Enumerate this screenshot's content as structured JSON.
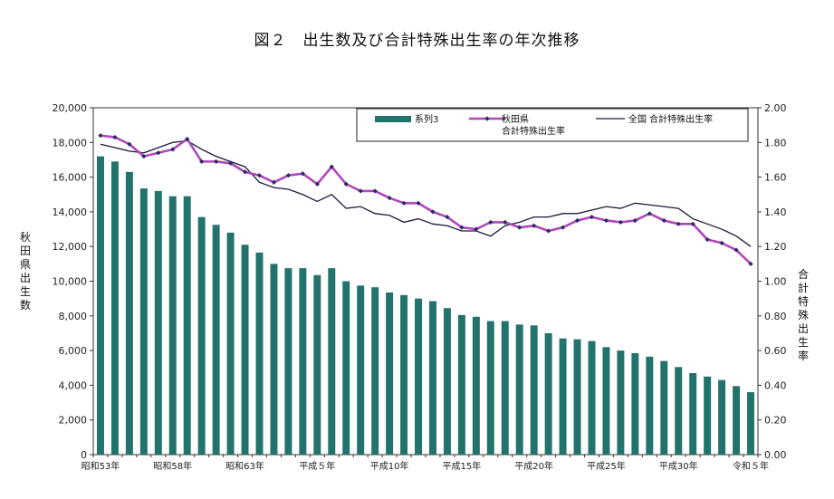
{
  "chart_data": {
    "type": "bar",
    "title": "図２　出生数及び合計特殊出生率の年次推移",
    "ylabel_left": "秋田県出生数",
    "ylabel_right": "合計特殊出生率",
    "ylim_left": [
      0,
      20000
    ],
    "ylim_right": [
      0,
      2.0
    ],
    "yticks_left": [
      "0",
      "2,000",
      "4,000",
      "6,000",
      "8,000",
      "10,000",
      "12,000",
      "14,000",
      "16,000",
      "18,000",
      "20,000"
    ],
    "yticks_right": [
      "0.00",
      "0.20",
      "0.40",
      "0.60",
      "0.80",
      "1.00",
      "1.20",
      "1.40",
      "1.60",
      "1.80",
      "2.00"
    ],
    "x_tick_labels": [
      {
        "index": 0,
        "label": "昭和53年"
      },
      {
        "index": 5,
        "label": "昭和58年"
      },
      {
        "index": 10,
        "label": "昭和63年"
      },
      {
        "index": 15,
        "label": "平成５年"
      },
      {
        "index": 20,
        "label": "平成10年"
      },
      {
        "index": 25,
        "label": "平成15年"
      },
      {
        "index": 30,
        "label": "平成20年"
      },
      {
        "index": 35,
        "label": "平成25年"
      },
      {
        "index": 40,
        "label": "平成30年"
      },
      {
        "index": 45,
        "label": "令和５年"
      }
    ],
    "grid": false,
    "legend_position": "top-right",
    "series": [
      {
        "name": "系列3",
        "kind": "bar",
        "axis": "left",
        "color": "#22736b",
        "values": [
          17200,
          16900,
          16300,
          15350,
          15200,
          14900,
          14900,
          13700,
          13250,
          12800,
          12100,
          11650,
          11000,
          10750,
          10750,
          10350,
          10750,
          10000,
          9750,
          9650,
          9350,
          9200,
          9000,
          8850,
          8450,
          8050,
          7950,
          7700,
          7700,
          7500,
          7450,
          7000,
          6700,
          6650,
          6550,
          6200,
          6000,
          5850,
          5650,
          5400,
          5050,
          4700,
          4500,
          4300,
          3950,
          3600
        ]
      },
      {
        "name": "秋田県\n合計特殊出生率",
        "kind": "line-marker",
        "axis": "right",
        "color": "#b146b8",
        "values": [
          1.84,
          1.83,
          1.79,
          1.72,
          1.74,
          1.76,
          1.82,
          1.69,
          1.69,
          1.68,
          1.63,
          1.61,
          1.57,
          1.61,
          1.62,
          1.56,
          1.66,
          1.56,
          1.52,
          1.52,
          1.48,
          1.45,
          1.45,
          1.4,
          1.37,
          1.31,
          1.3,
          1.34,
          1.34,
          1.31,
          1.32,
          1.29,
          1.31,
          1.35,
          1.37,
          1.35,
          1.34,
          1.35,
          1.39,
          1.35,
          1.33,
          1.33,
          1.24,
          1.22,
          1.18,
          1.1
        ]
      },
      {
        "name": "全国 合計特殊出生率",
        "kind": "line",
        "axis": "right",
        "color": "#1a1a40",
        "values": [
          1.79,
          1.77,
          1.75,
          1.74,
          1.77,
          1.8,
          1.81,
          1.76,
          1.72,
          1.69,
          1.66,
          1.57,
          1.54,
          1.53,
          1.5,
          1.46,
          1.5,
          1.42,
          1.43,
          1.39,
          1.38,
          1.34,
          1.36,
          1.33,
          1.32,
          1.29,
          1.29,
          1.26,
          1.32,
          1.34,
          1.37,
          1.37,
          1.39,
          1.39,
          1.41,
          1.43,
          1.42,
          1.45,
          1.44,
          1.43,
          1.42,
          1.36,
          1.33,
          1.3,
          1.26,
          1.2
        ]
      }
    ]
  }
}
